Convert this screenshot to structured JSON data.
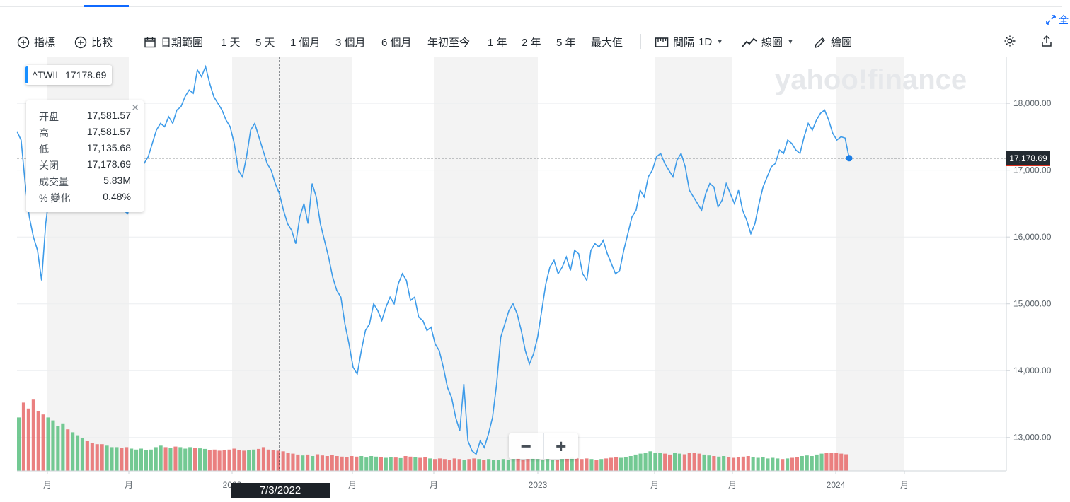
{
  "toolbar": {
    "indicators": "指標",
    "compare": "比較",
    "date_range": "日期範圍",
    "ranges": [
      "1 天",
      "5 天",
      "1 個月",
      "3 個月",
      "6 個月",
      "年初至今",
      "1 年",
      "2 年",
      "5 年",
      "最大值"
    ],
    "interval_label": "間隔",
    "interval_value": "1D",
    "chart_type": "線圖",
    "draw": "繪圖",
    "fullscreen": "全"
  },
  "watermark": "yahoo!finance",
  "ticker": {
    "symbol": "^TWII",
    "last": "17178.69"
  },
  "tooltip": {
    "rows": [
      {
        "label": "开盘",
        "value": "17,581.57"
      },
      {
        "label": "高",
        "value": "17,581.57"
      },
      {
        "label": "低",
        "value": "17,135.68"
      },
      {
        "label": "关闭",
        "value": "17,178.69"
      },
      {
        "label": "成交量",
        "value": "5.83M"
      },
      {
        "label": "% 變化",
        "value": "0.48%"
      }
    ],
    "close_symbol": "✕"
  },
  "crosshair_date": "7/3/2022",
  "current_price_label": "17,178.69",
  "zoom": {
    "minus": "−",
    "plus": "+"
  },
  "colors": {
    "line": "#3d9be9",
    "volume_up": "#5bbf80",
    "volume_down": "#e66a6a",
    "band": "#f3f3f3",
    "price_tag": "#232a31"
  },
  "chart_data": {
    "type": "line",
    "series": [
      {
        "values": [
          17580,
          17450,
          16800,
          16300,
          16000,
          15800,
          15350,
          16200,
          16700,
          16650,
          17050,
          17200,
          16900,
          17300,
          17700,
          17850,
          17950,
          17500,
          17200,
          16900,
          16650,
          16600,
          16850,
          17000,
          17250,
          16800,
          16400,
          16350,
          16600,
          16900,
          17000,
          17100,
          17200,
          17400,
          17600,
          17700,
          17650,
          17800,
          17700,
          17900,
          17950,
          18100,
          18200,
          18150,
          18500,
          18400,
          18550,
          18300,
          18100,
          18000,
          17900,
          17750,
          17650,
          17400,
          17000,
          16900,
          17200,
          17600,
          17700,
          17500,
          17300,
          17100,
          17000,
          16800,
          16650,
          16400,
          16200,
          16100,
          15900,
          16300,
          16500,
          16200,
          16800,
          16600,
          16200,
          15950,
          15700,
          15400,
          15200,
          15100,
          14700,
          14400,
          14050,
          13950,
          14300,
          14600,
          14700,
          15000,
          14900,
          14750,
          14950,
          15100,
          15000,
          15300,
          15450,
          15350,
          15050,
          15100,
          14800,
          14750,
          14600,
          14650,
          14400,
          14300,
          14050,
          13750,
          13600,
          13300,
          13100,
          13800,
          12950,
          12800,
          12750,
          12950,
          12850,
          13050,
          13300,
          13800,
          14500,
          14700,
          14900,
          15000,
          14850,
          14600,
          14300,
          14100,
          14250,
          14500,
          14900,
          15300,
          15550,
          15650,
          15450,
          15550,
          15700,
          15500,
          15800,
          15750,
          15450,
          15350,
          15800,
          15900,
          15850,
          15950,
          15750,
          15600,
          15450,
          15500,
          15800,
          16050,
          16300,
          16400,
          16700,
          16600,
          16900,
          17000,
          17200,
          17250,
          17100,
          17000,
          16900,
          17150,
          17250,
          17050,
          16700,
          16600,
          16500,
          16400,
          16650,
          16800,
          16750,
          16450,
          16550,
          16800,
          16650,
          16500,
          16700,
          16400,
          16250,
          16050,
          16200,
          16500,
          16750,
          16900,
          17050,
          17100,
          17300,
          17250,
          17450,
          17400,
          17300,
          17250,
          17500,
          17700,
          17600,
          17750,
          17850,
          17900,
          17750,
          17550,
          17450,
          17500,
          17480,
          17178.69
        ]
      }
    ],
    "x_ticks": [
      "月",
      "月",
      "2022",
      "月",
      "月",
      "2023",
      "月",
      "月",
      "2024",
      "月"
    ],
    "y_ticks": [
      "18,000.00",
      "17,000.00",
      "16,000.00",
      "15,000.00",
      "14,000.00",
      "13,000.00"
    ],
    "ylim": [
      12500,
      18700
    ],
    "grid": true,
    "volume": {
      "values": [
        1.8,
        2.3,
        2.1,
        2.4,
        2.0,
        1.9,
        1.8,
        1.7,
        1.5,
        1.6,
        1.4,
        1.3,
        1.2,
        1.1,
        1.0,
        0.95,
        0.9,
        0.9,
        0.85,
        0.8,
        0.8,
        0.78,
        0.8,
        0.75,
        0.72,
        0.75,
        0.7,
        0.72,
        0.8,
        0.85,
        0.8,
        0.78,
        0.82,
        0.8,
        0.75,
        0.8,
        0.78,
        0.76,
        0.74,
        0.7,
        0.72,
        0.68,
        0.7,
        0.72,
        0.75,
        0.7,
        0.68,
        0.7,
        0.72,
        0.74,
        0.8,
        0.72,
        0.7,
        0.68,
        0.66,
        0.6,
        0.58,
        0.55,
        0.52,
        0.55,
        0.5,
        0.56,
        0.52,
        0.5,
        0.54,
        0.5,
        0.48,
        0.46,
        0.5,
        0.48,
        0.5,
        0.45,
        0.5,
        0.48,
        0.46,
        0.44,
        0.46,
        0.45,
        0.43,
        0.5,
        0.48,
        0.46,
        0.44,
        0.46,
        0.42,
        0.4,
        0.42,
        0.4,
        0.38,
        0.42,
        0.4,
        0.38,
        0.4,
        0.42,
        0.4,
        0.38,
        0.4,
        0.38,
        0.36,
        0.4,
        0.38,
        0.4,
        0.42,
        0.38,
        0.4,
        0.42,
        0.4,
        0.38,
        0.4,
        0.36,
        0.38,
        0.4,
        0.42,
        0.44,
        0.42,
        0.4,
        0.42,
        0.4,
        0.38,
        0.4,
        0.42,
        0.44,
        0.46,
        0.44,
        0.46,
        0.5,
        0.55,
        0.58,
        0.6,
        0.66,
        0.62,
        0.6,
        0.58,
        0.55,
        0.6,
        0.58,
        0.56,
        0.6,
        0.62,
        0.58,
        0.55,
        0.52,
        0.5,
        0.48,
        0.5,
        0.46,
        0.44,
        0.46,
        0.48,
        0.5,
        0.46,
        0.44,
        0.46,
        0.42,
        0.44,
        0.42,
        0.4,
        0.42,
        0.44,
        0.46,
        0.5,
        0.52,
        0.5,
        0.55,
        0.58,
        0.6,
        0.62,
        0.6,
        0.58,
        0.56
      ],
      "ylim": [
        0,
        3
      ]
    }
  }
}
